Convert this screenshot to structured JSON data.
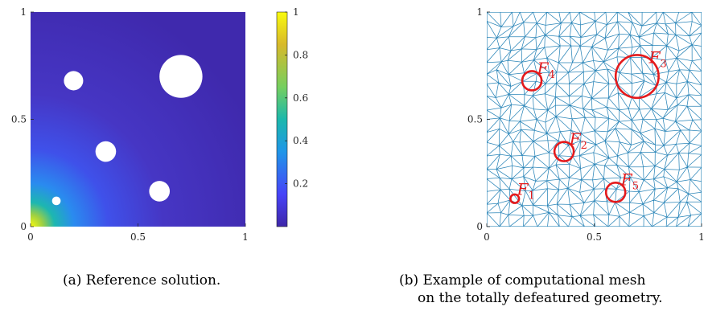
{
  "panel_a": {
    "caption": "(a) Reference solution.",
    "chart_data": {
      "type": "heatmap",
      "xlim": [
        0,
        1
      ],
      "ylim": [
        0,
        1
      ],
      "xticks": [
        "0",
        "0.5",
        "1"
      ],
      "yticks": [
        "0",
        "0.5",
        "1"
      ],
      "colorbar": {
        "range": [
          0,
          1
        ],
        "ticks": [
          "0.2",
          "0.4",
          "0.6",
          "0.8",
          "1"
        ],
        "colormap": "parula",
        "colors": [
          "#3e26a8",
          "#4743f8",
          "#1f96e8",
          "#1bb8ac",
          "#75cf5f",
          "#d8b92a",
          "#f9fb0e"
        ]
      },
      "holes": [
        {
          "cx": 0.2,
          "cy": 0.68,
          "r": 0.045
        },
        {
          "cx": 0.7,
          "cy": 0.7,
          "r": 0.1
        },
        {
          "cx": 0.35,
          "cy": 0.35,
          "r": 0.048
        },
        {
          "cx": 0.6,
          "cy": 0.165,
          "r": 0.048
        },
        {
          "cx": 0.12,
          "cy": 0.12,
          "r": 0.02
        }
      ]
    }
  },
  "panel_b": {
    "caption_line1": "(b) Example of computational mesh",
    "caption_line2": "on the totally defeatured geometry.",
    "chart_data": {
      "type": "scatter",
      "xlim": [
        0,
        1
      ],
      "ylim": [
        0,
        1
      ],
      "xticks": [
        "0",
        "0.5",
        "1"
      ],
      "yticks": [
        "0",
        "0.5",
        "1"
      ],
      "mesh_color": "#2a85b8",
      "feature_color": "#e41a1c",
      "features": [
        {
          "label": "F",
          "sub": "1",
          "cx": 0.13,
          "cy": 0.13,
          "r": 0.02
        },
        {
          "label": "F",
          "sub": "2",
          "cx": 0.36,
          "cy": 0.35,
          "r": 0.045
        },
        {
          "label": "F",
          "sub": "3",
          "cx": 0.7,
          "cy": 0.7,
          "r": 0.1
        },
        {
          "label": "F",
          "sub": "4",
          "cx": 0.21,
          "cy": 0.68,
          "r": 0.045
        },
        {
          "label": "F",
          "sub": "5",
          "cx": 0.6,
          "cy": 0.16,
          "r": 0.045
        }
      ]
    }
  }
}
